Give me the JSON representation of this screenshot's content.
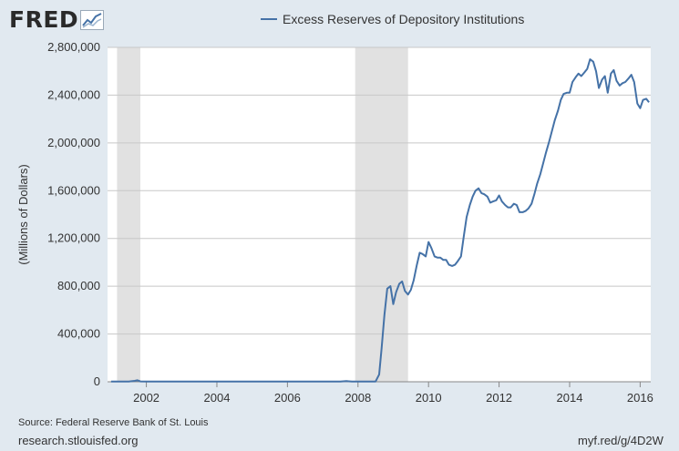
{
  "logo": {
    "text": "FRED",
    "icon": "fred-chart-icon"
  },
  "legend": {
    "label": "Excess Reserves of Depository Institutions",
    "color": "#4572a7"
  },
  "source": "Source: Federal Reserve Bank of St. Louis",
  "url_left": "research.stlouisfed.org",
  "url_right": "myf.red/g/4D2W",
  "chart_data": {
    "type": "line",
    "title": "",
    "xlabel": "",
    "ylabel": "(Millions of Dollars)",
    "xlim": [
      2000.9,
      2016.3
    ],
    "ylim": [
      0,
      2800000
    ],
    "yticks": [
      0,
      400000,
      800000,
      1200000,
      1600000,
      2000000,
      2400000,
      2800000
    ],
    "ytick_labels": [
      "0",
      "400,000",
      "800,000",
      "1,200,000",
      "1,600,000",
      "2,000,000",
      "2,400,000",
      "2,800,000"
    ],
    "xticks": [
      2002,
      2004,
      2006,
      2008,
      2010,
      2012,
      2014,
      2016
    ],
    "xtick_labels": [
      "2002",
      "2004",
      "2006",
      "2008",
      "2010",
      "2012",
      "2014",
      "2016"
    ],
    "grid": true,
    "recessions": [
      [
        2001.17,
        2001.83
      ],
      [
        2007.92,
        2009.42
      ]
    ],
    "series": [
      {
        "name": "Excess Reserves of Depository Institutions",
        "color": "#4572a7",
        "x": [
          2001.0,
          2001.5,
          2001.67,
          2001.75,
          2001.83,
          2002.0,
          2004.0,
          2006.0,
          2007.5,
          2007.67,
          2007.83,
          2008.0,
          2008.5,
          2008.6,
          2008.67,
          2008.75,
          2008.83,
          2008.92,
          2009.0,
          2009.08,
          2009.17,
          2009.25,
          2009.33,
          2009.42,
          2009.5,
          2009.58,
          2009.67,
          2009.75,
          2009.83,
          2009.92,
          2010.0,
          2010.08,
          2010.17,
          2010.25,
          2010.33,
          2010.42,
          2010.5,
          2010.58,
          2010.67,
          2010.75,
          2010.83,
          2010.92,
          2011.0,
          2011.08,
          2011.17,
          2011.25,
          2011.33,
          2011.42,
          2011.5,
          2011.58,
          2011.67,
          2011.75,
          2011.83,
          2011.92,
          2012.0,
          2012.08,
          2012.17,
          2012.25,
          2012.33,
          2012.42,
          2012.5,
          2012.58,
          2012.67,
          2012.75,
          2012.83,
          2012.92,
          2013.0,
          2013.08,
          2013.17,
          2013.25,
          2013.33,
          2013.42,
          2013.5,
          2013.58,
          2013.67,
          2013.75,
          2013.83,
          2013.92,
          2014.0,
          2014.08,
          2014.17,
          2014.25,
          2014.33,
          2014.42,
          2014.5,
          2014.58,
          2014.67,
          2014.75,
          2014.83,
          2014.92,
          2015.0,
          2015.08,
          2015.17,
          2015.25,
          2015.33,
          2015.42,
          2015.5,
          2015.58,
          2015.67,
          2015.75,
          2015.83,
          2015.92,
          2016.0,
          2016.08,
          2016.17,
          2016.25
        ],
        "y": [
          1500,
          2000,
          8000,
          12000,
          3000,
          1500,
          1500,
          1800,
          1800,
          5000,
          2000,
          2000,
          2000,
          60000,
          280000,
          560000,
          780000,
          800000,
          650000,
          750000,
          820000,
          840000,
          760000,
          730000,
          770000,
          850000,
          980000,
          1080000,
          1070000,
          1050000,
          1170000,
          1120000,
          1050000,
          1040000,
          1040000,
          1020000,
          1020000,
          980000,
          970000,
          980000,
          1010000,
          1050000,
          1220000,
          1380000,
          1480000,
          1550000,
          1600000,
          1620000,
          1580000,
          1570000,
          1550000,
          1500000,
          1510000,
          1520000,
          1560000,
          1510000,
          1480000,
          1460000,
          1460000,
          1490000,
          1480000,
          1420000,
          1420000,
          1430000,
          1450000,
          1490000,
          1570000,
          1660000,
          1740000,
          1830000,
          1920000,
          2010000,
          2100000,
          2190000,
          2270000,
          2360000,
          2410000,
          2420000,
          2420000,
          2510000,
          2550000,
          2580000,
          2560000,
          2590000,
          2620000,
          2700000,
          2680000,
          2600000,
          2460000,
          2530000,
          2560000,
          2420000,
          2580000,
          2610000,
          2520000,
          2480000,
          2500000,
          2510000,
          2540000,
          2570000,
          2510000,
          2330000,
          2290000,
          2360000,
          2370000,
          2340000
        ]
      }
    ]
  }
}
